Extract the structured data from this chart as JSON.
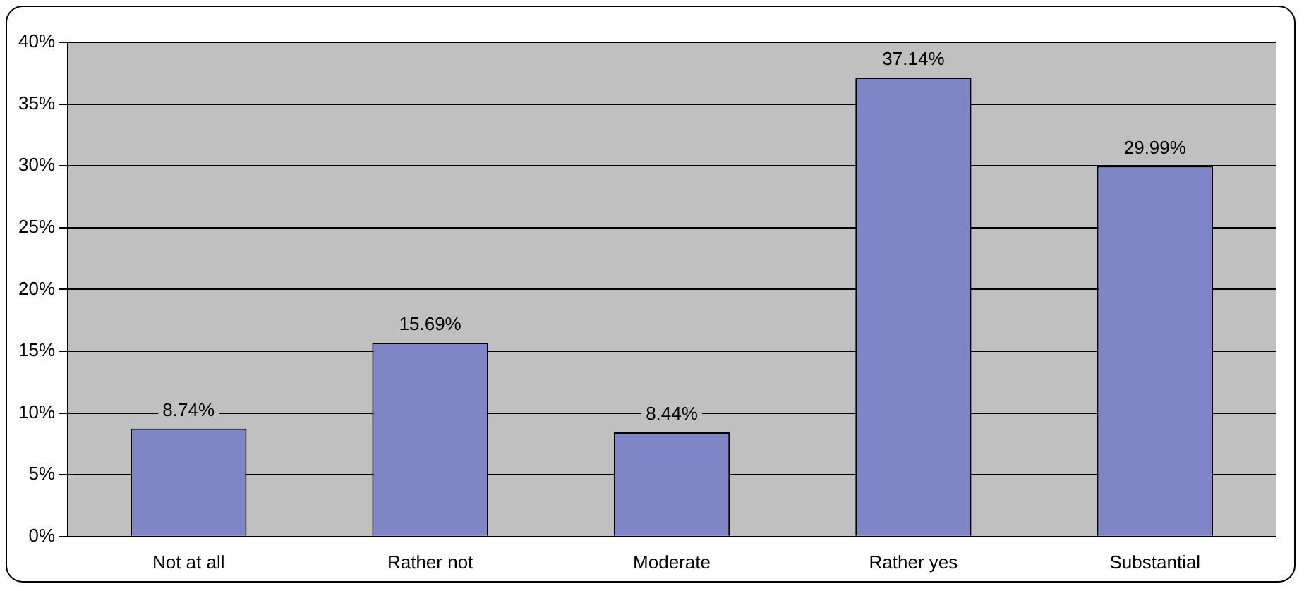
{
  "chart_data": {
    "type": "bar",
    "categories": [
      "Not at all",
      "Rather not",
      "Moderate",
      "Rather yes",
      "Substantial"
    ],
    "values": [
      8.74,
      15.69,
      8.44,
      37.14,
      29.99
    ],
    "color": "#7f86c8",
    "value_labels": [
      "8.74%",
      "15.69%",
      "8.44%",
      "37.14%",
      "29.99%"
    ],
    "ylim": [
      0,
      40
    ],
    "yticks": [
      {
        "value": 0,
        "label": "0%"
      },
      {
        "value": 5,
        "label": "5%"
      },
      {
        "value": 10,
        "label": "10%"
      },
      {
        "value": 15,
        "label": "15%"
      },
      {
        "value": 20,
        "label": "20%"
      },
      {
        "value": 25,
        "label": "25%"
      },
      {
        "value": 30,
        "label": "30%"
      },
      {
        "value": 35,
        "label": "35%"
      },
      {
        "value": 40,
        "label": "40%"
      }
    ],
    "grid": "y",
    "legend": false
  }
}
